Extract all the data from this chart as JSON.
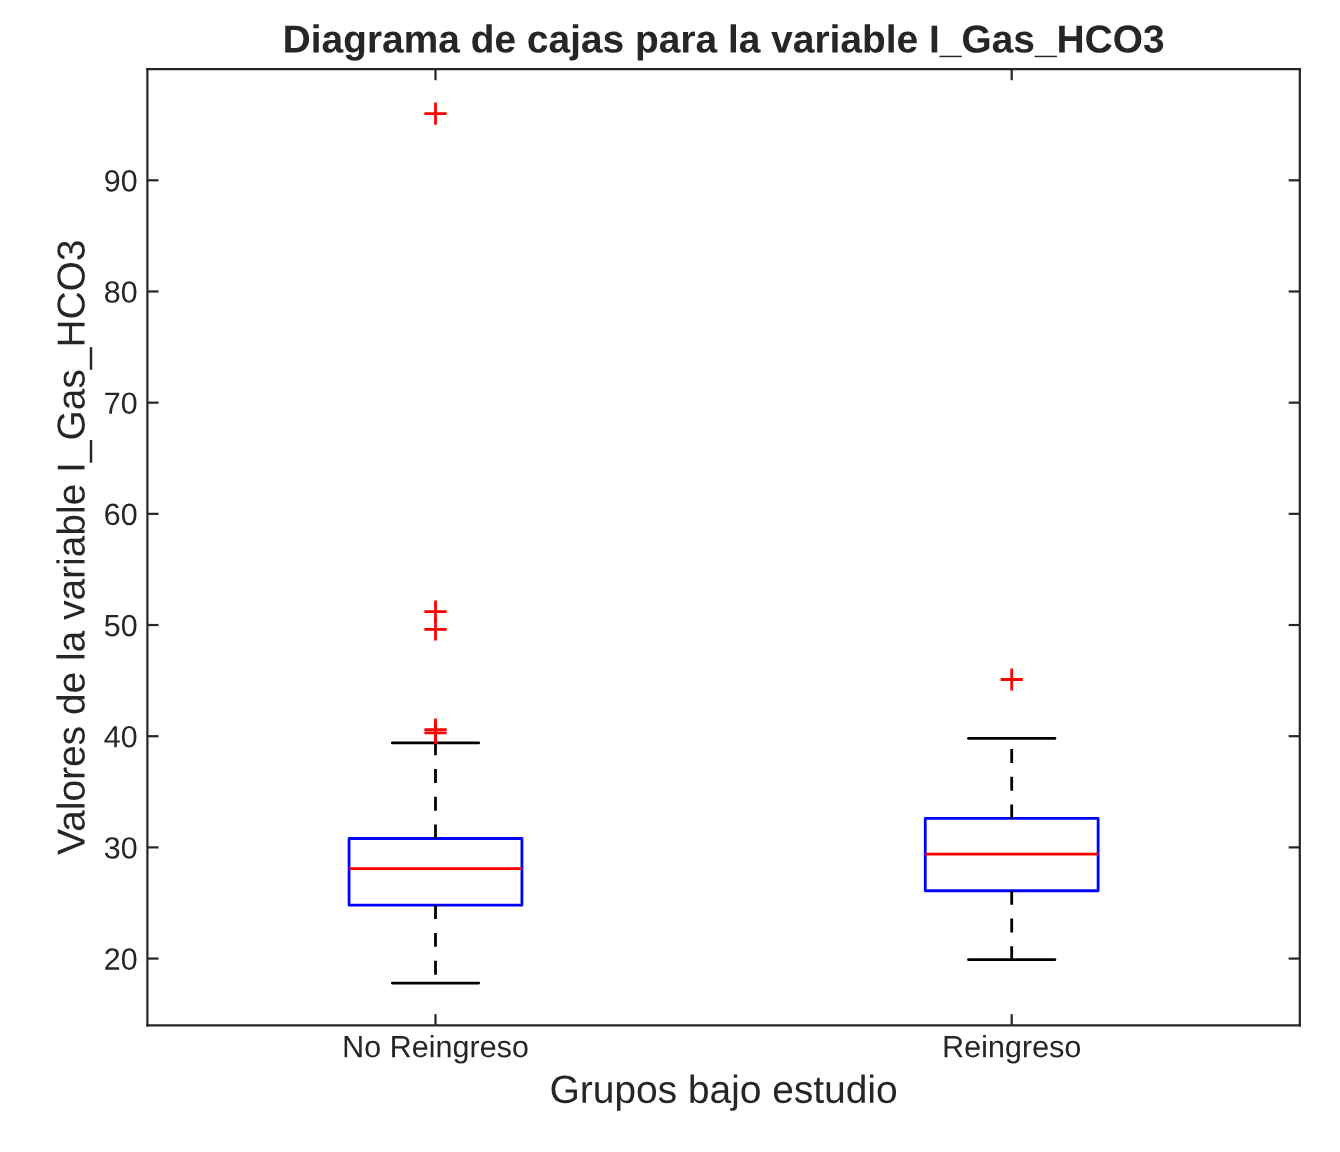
{
  "chart_data": {
    "type": "box",
    "title": "Diagrama de cajas para la variable I_Gas_HCO3",
    "xlabel": "Grupos bajo estudio",
    "ylabel": "Valores de la variable I_Gas_HCO3",
    "categories": [
      "No Reingreso",
      "Reingreso"
    ],
    "boxes": [
      {
        "low": 17.8,
        "q1": 24.8,
        "median": 28.1,
        "q3": 30.8,
        "high": 39.4,
        "outliers": [
          96.0,
          51.2,
          49.6,
          40.6,
          40.3
        ]
      },
      {
        "low": 19.9,
        "q1": 26.1,
        "median": 29.4,
        "q3": 32.6,
        "high": 39.8,
        "outliers": [
          45.1
        ]
      }
    ],
    "color": "#0000ff",
    "marker": "cross",
    "line_style": "dashed",
    "ylim": [
      14,
      100
    ],
    "yticks": [
      20,
      30,
      40,
      50,
      60,
      70,
      80,
      90
    ],
    "grid": false
  }
}
